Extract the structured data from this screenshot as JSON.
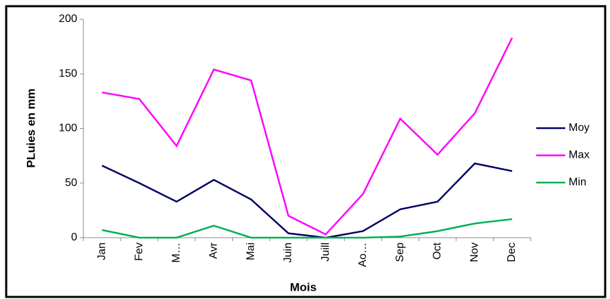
{
  "chart_data": {
    "type": "line",
    "x_label": "Mois",
    "y_label": "PLuies en mm",
    "categories": [
      "Jan",
      "Fev",
      "M…",
      "Avr",
      "Mai",
      "Juin",
      "Juill",
      "Ao…",
      "Sep",
      "Oct",
      "Nov",
      "Dec"
    ],
    "series": [
      {
        "name": "Moy",
        "color": "#000066",
        "values": [
          66,
          50,
          33,
          53,
          35,
          4,
          0,
          6,
          26,
          33,
          68,
          61
        ]
      },
      {
        "name": "Max",
        "color": "#ff00ff",
        "values": [
          133,
          127,
          84,
          154,
          144,
          20,
          3,
          40,
          109,
          76,
          114,
          183
        ]
      },
      {
        "name": "Min",
        "color": "#00b050",
        "values": [
          7,
          0,
          0,
          11,
          0,
          0,
          0,
          0,
          1,
          6,
          13,
          17
        ]
      }
    ],
    "ylim": [
      0,
      200
    ],
    "yticks": [
      0,
      50,
      100,
      150,
      200
    ],
    "legend": "right"
  }
}
